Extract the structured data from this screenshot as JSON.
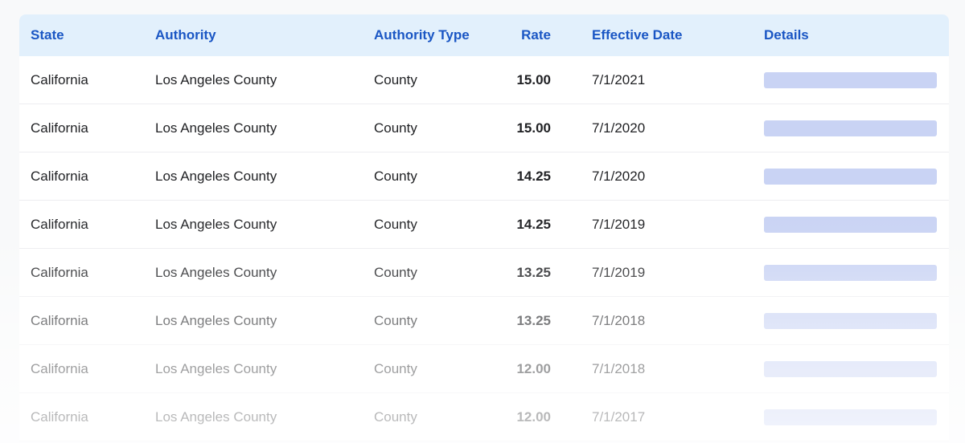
{
  "colors": {
    "page_background": "#f8f9fa",
    "table_background": "#ffffff",
    "header_background": "#e2f0fc",
    "header_text": "#1a56c4",
    "body_text": "#1f2023",
    "row_divider": "#ededf0",
    "details_bar": "#c9d3f4"
  },
  "table": {
    "headers": {
      "state": "State",
      "authority": "Authority",
      "authority_type": "Authority Type",
      "rate": "Rate",
      "effective_date": "Effective Date",
      "details": "Details"
    },
    "details_placeholder": {
      "shape": "bar",
      "color": "#c9d3f4"
    },
    "rows": [
      {
        "state": "California",
        "authority": "Los Angeles County",
        "authority_type": "County",
        "rate": "15.00",
        "effective_date": "7/1/2021"
      },
      {
        "state": "California",
        "authority": "Los Angeles County",
        "authority_type": "County",
        "rate": "15.00",
        "effective_date": "7/1/2020"
      },
      {
        "state": "California",
        "authority": "Los Angeles County",
        "authority_type": "County",
        "rate": "14.25",
        "effective_date": "7/1/2020"
      },
      {
        "state": "California",
        "authority": "Los Angeles County",
        "authority_type": "County",
        "rate": "14.25",
        "effective_date": "7/1/2019"
      },
      {
        "state": "California",
        "authority": "Los Angeles County",
        "authority_type": "County",
        "rate": "13.25",
        "effective_date": "7/1/2019"
      },
      {
        "state": "California",
        "authority": "Los Angeles County",
        "authority_type": "County",
        "rate": "13.25",
        "effective_date": "7/1/2018"
      },
      {
        "state": "California",
        "authority": "Los Angeles County",
        "authority_type": "County",
        "rate": "12.00",
        "effective_date": "7/1/2018"
      },
      {
        "state": "California",
        "authority": "Los Angeles County",
        "authority_type": "County",
        "rate": "12.00",
        "effective_date": "7/1/2017"
      }
    ]
  }
}
